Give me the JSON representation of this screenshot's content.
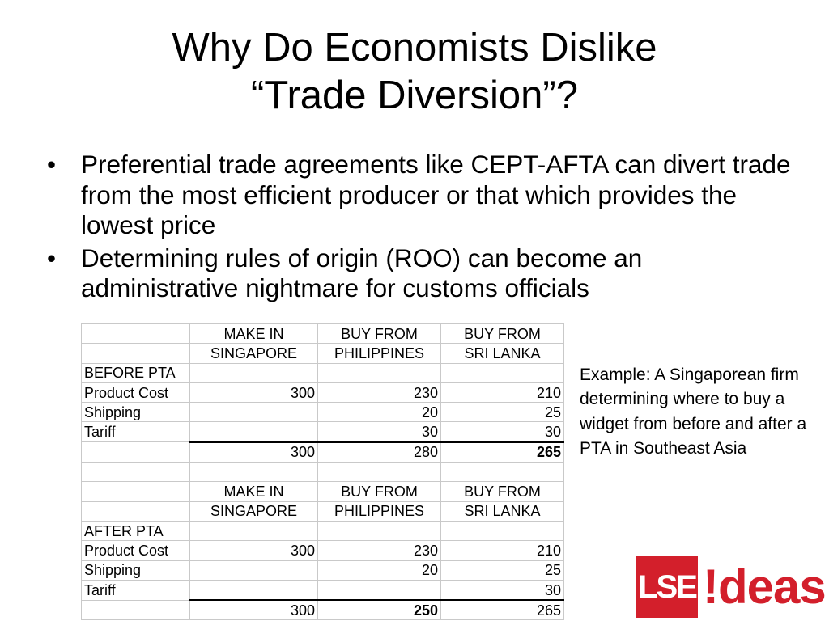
{
  "slide": {
    "title_line1": "Why Do Economists Dislike",
    "title_line2": "“Trade Diversion”?",
    "bullets": [
      "Preferential trade agreements like CEPT-AFTA can divert trade from the most efficient producer or that which provides the lowest price",
      "Determining rules of origin (ROO) can become an administrative nightmare for customs officials"
    ],
    "bullet_marker": "•",
    "note": "Example: A Singaporean firm determining where to buy a widget from before and after a PTA in Southeast Asia",
    "logo": {
      "lse": "LSE",
      "ideas": "!deas",
      "color": "#d31f2b"
    }
  },
  "table": {
    "headers_row1": [
      "MAKE IN",
      "BUY FROM",
      "BUY FROM"
    ],
    "headers_row2": [
      "SINGAPORE",
      "PHILIPPINES",
      "SRI LANKA"
    ],
    "before": {
      "label": "BEFORE PTA",
      "rows": [
        {
          "label": "Product Cost",
          "values": [
            "300",
            "230",
            "210"
          ]
        },
        {
          "label": "Shipping",
          "values": [
            "",
            "20",
            "25"
          ]
        },
        {
          "label": "Tariff",
          "values": [
            "",
            "30",
            "30"
          ]
        }
      ],
      "totals": [
        "300",
        "280",
        "265"
      ]
    },
    "after": {
      "label": "AFTER PTA",
      "rows": [
        {
          "label": "Product Cost",
          "values": [
            "300",
            "230",
            "210"
          ]
        },
        {
          "label": "Shipping",
          "values": [
            "",
            "20",
            "25"
          ]
        },
        {
          "label": "Tariff",
          "values": [
            "",
            "",
            "30"
          ]
        }
      ],
      "totals": [
        "300",
        "250",
        "265"
      ]
    }
  }
}
